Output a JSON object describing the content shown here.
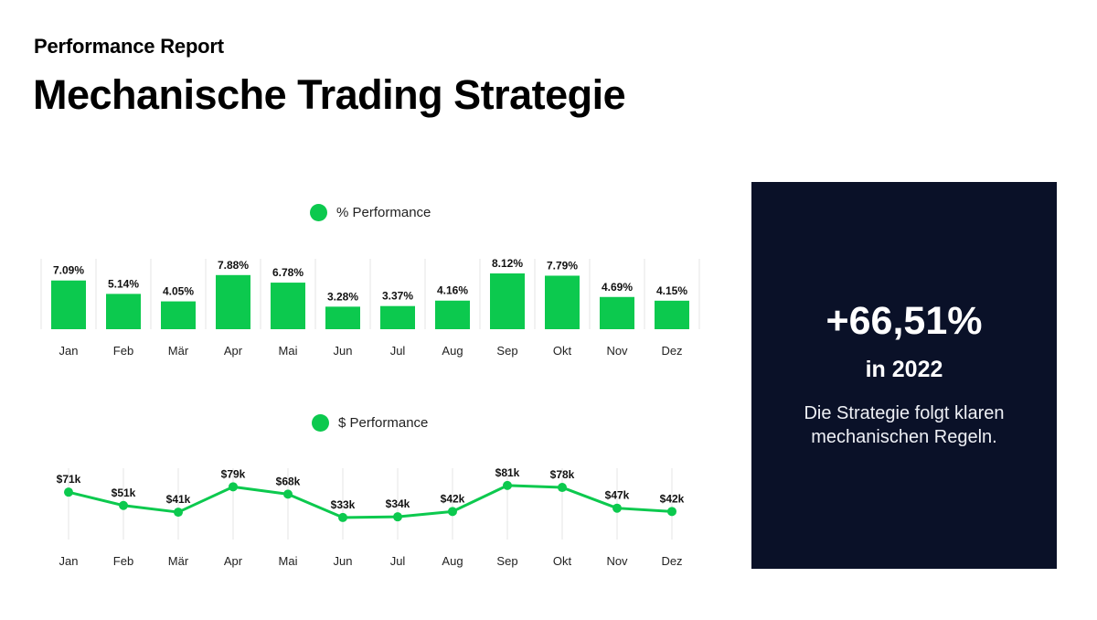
{
  "header": {
    "subtitle": "Performance Report",
    "title": "Mechanische Trading Strategie"
  },
  "colors": {
    "accent": "#0cc94e",
    "panel": "#0a1128",
    "grid": "#e6e6e6"
  },
  "chart_data": [
    {
      "type": "bar",
      "legend": "% Performance",
      "categories": [
        "Jan",
        "Feb",
        "Mär",
        "Apr",
        "Mai",
        "Jun",
        "Jul",
        "Aug",
        "Sep",
        "Okt",
        "Nov",
        "Dez"
      ],
      "values": [
        7.09,
        5.14,
        4.05,
        7.88,
        6.78,
        3.28,
        3.37,
        4.16,
        8.12,
        7.79,
        4.69,
        4.15
      ],
      "labels": [
        "7.09%",
        "5.14%",
        "4.05%",
        "7.88%",
        "6.78%",
        "3.28%",
        "3.37%",
        "4.16%",
        "8.12%",
        "7.79%",
        "4.69%",
        "4.15%"
      ],
      "ylim": [
        0,
        8.12
      ],
      "grid": true,
      "legend_position": "top-center"
    },
    {
      "type": "line",
      "legend": "$ Performance",
      "categories": [
        "Jan",
        "Feb",
        "Mär",
        "Apr",
        "Mai",
        "Jun",
        "Jul",
        "Aug",
        "Sep",
        "Okt",
        "Nov",
        "Dez"
      ],
      "values": [
        71,
        51,
        41,
        79,
        68,
        33,
        34,
        42,
        81,
        78,
        47,
        42
      ],
      "labels": [
        "$71k",
        "$51k",
        "$41k",
        "$79k",
        "$68k",
        "$33k",
        "$34k",
        "$42k",
        "$81k",
        "$78k",
        "$47k",
        "$42k"
      ],
      "ylim": [
        0,
        100
      ],
      "grid": true,
      "legend_position": "top-center"
    }
  ],
  "kpi": {
    "value": "+66,51%",
    "period": "in 2022",
    "description": "Die Strategie folgt klaren mechanischen Regeln."
  }
}
